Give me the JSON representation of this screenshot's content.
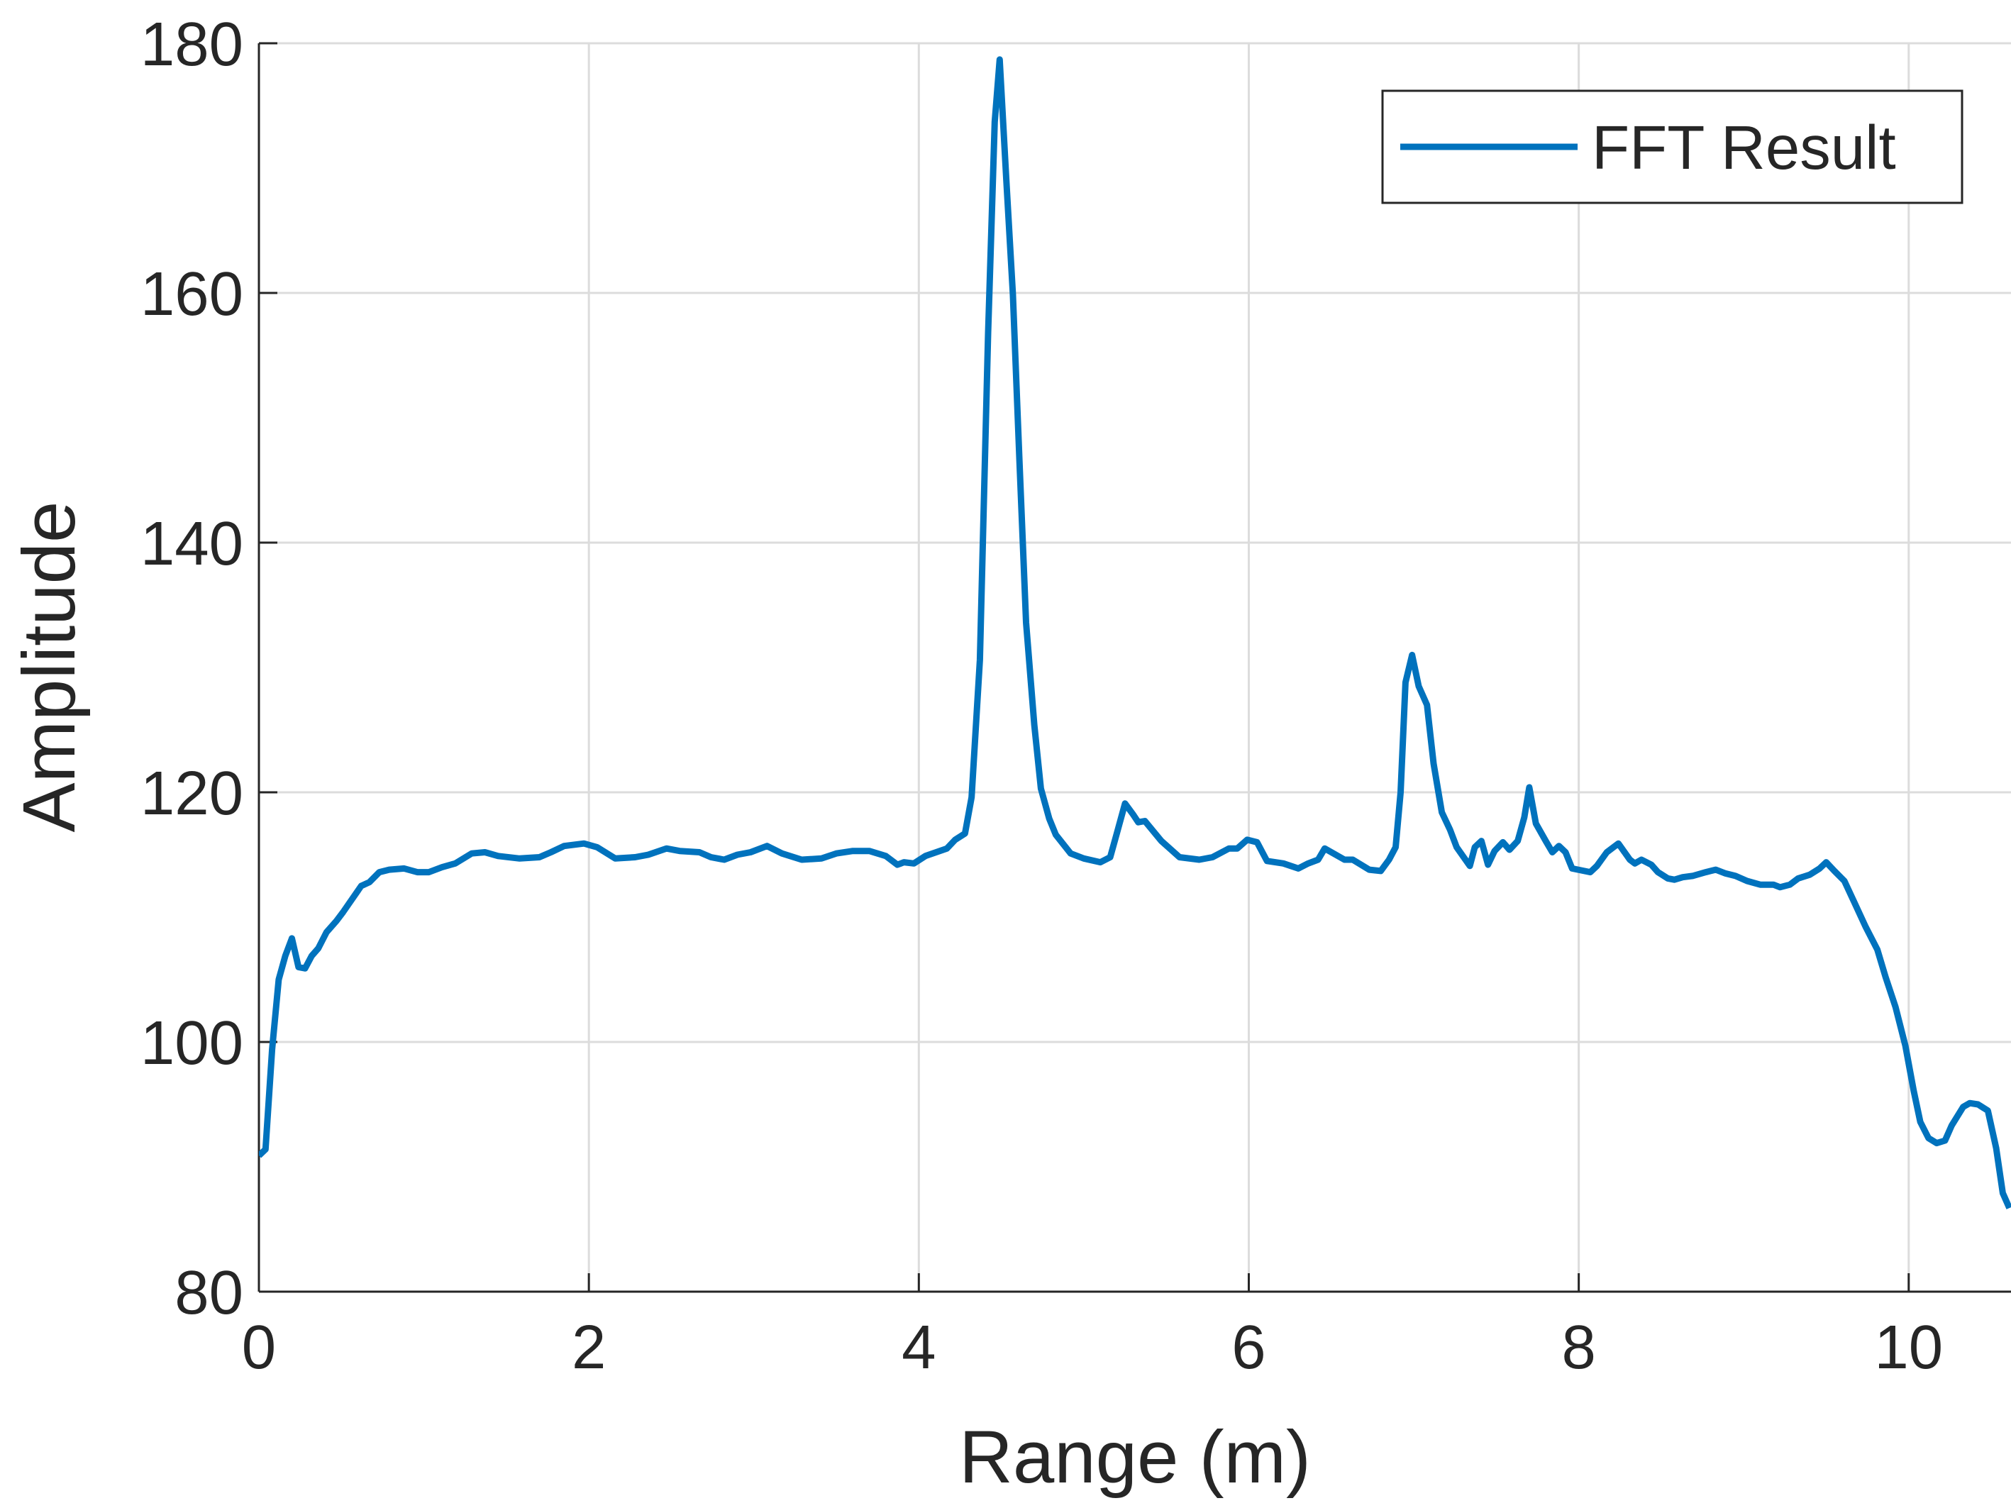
{
  "chart_data": {
    "type": "line",
    "xlabel": "Range (m)",
    "ylabel": "Amplitude",
    "xlim": [
      0,
      10.62
    ],
    "ylim": [
      80,
      180
    ],
    "xticks": [
      0,
      2,
      4,
      6,
      8,
      10
    ],
    "yticks": [
      80,
      100,
      120,
      140,
      160,
      180
    ],
    "grid": true,
    "legend": "upper right",
    "x": [
      0,
      0.04,
      0.08,
      0.12,
      0.16,
      0.2,
      0.24,
      0.28,
      0.32,
      0.36,
      0.41,
      0.47,
      0.51,
      0.62,
      0.67,
      0.73,
      0.79,
      0.88,
      0.96,
      1.03,
      1.11,
      1.19,
      1.29,
      1.37,
      1.45,
      1.58,
      1.7,
      1.77,
      1.85,
      1.97,
      2.05,
      2.16,
      2.28,
      2.36,
      2.47,
      2.55,
      2.67,
      2.74,
      2.82,
      2.9,
      2.98,
      3.08,
      3.17,
      3.29,
      3.41,
      3.5,
      3.6,
      3.7,
      3.8,
      3.87,
      3.91,
      3.97,
      4.04,
      4.17,
      4.22,
      4.28,
      4.32,
      4.37,
      4.42,
      4.46,
      4.49,
      4.53,
      4.57,
      4.61,
      4.65,
      4.7,
      4.74,
      4.79,
      4.83,
      4.92,
      5.0,
      5.1,
      5.16,
      5.2,
      5.25,
      5.3,
      5.33,
      5.37,
      5.47,
      5.58,
      5.7,
      5.78,
      5.88,
      5.93,
      5.99,
      6.05,
      6.11,
      6.21,
      6.3,
      6.36,
      6.42,
      6.46,
      6.58,
      6.63,
      6.73,
      6.8,
      6.85,
      6.89,
      6.92,
      6.95,
      6.99,
      7.03,
      7.08,
      7.12,
      7.17,
      7.22,
      7.26,
      7.34,
      7.37,
      7.41,
      7.45,
      7.49,
      7.54,
      7.58,
      7.63,
      7.67,
      7.7,
      7.74,
      7.8,
      7.84,
      7.88,
      7.92,
      7.96,
      8.07,
      8.11,
      8.17,
      8.24,
      8.31,
      8.34,
      8.38,
      8.44,
      8.48,
      8.54,
      8.58,
      8.63,
      8.69,
      8.77,
      8.83,
      8.89,
      8.95,
      9.02,
      9.1,
      9.18,
      9.22,
      9.28,
      9.33,
      9.4,
      9.46,
      9.5,
      9.55,
      9.61,
      9.67,
      9.74,
      9.81,
      9.86,
      9.92,
      9.98,
      10.03,
      10.07,
      10.12,
      10.17,
      10.22,
      10.26,
      10.33,
      10.37,
      10.42,
      10.48,
      10.53,
      10.57,
      10.61
    ],
    "series": [
      {
        "name": "FFT Result",
        "color": "#0072bd",
        "values": [
          90.9,
          91.4,
          99.4,
          105.0,
          106.9,
          108.3,
          106.0,
          105.9,
          106.9,
          107.5,
          108.8,
          109.7,
          110.4,
          112.5,
          112.8,
          113.6,
          113.8,
          113.9,
          113.6,
          113.6,
          114.0,
          114.3,
          115.1,
          115.2,
          114.9,
          114.7,
          114.8,
          115.2,
          115.7,
          115.9,
          115.6,
          114.7,
          114.8,
          115.0,
          115.5,
          115.3,
          115.2,
          114.8,
          114.6,
          115.0,
          115.2,
          115.7,
          115.1,
          114.6,
          114.7,
          115.1,
          115.3,
          115.3,
          114.9,
          114.2,
          114.4,
          114.3,
          114.9,
          115.5,
          116.2,
          116.7,
          119.6,
          130.6,
          156.8,
          173.7,
          178.7,
          169.1,
          159.9,
          146.5,
          133.6,
          125.4,
          120.3,
          117.9,
          116.6,
          115.1,
          114.7,
          114.4,
          114.8,
          116.7,
          119.1,
          118.2,
          117.6,
          117.7,
          116.1,
          114.8,
          114.6,
          114.8,
          115.5,
          115.5,
          116.2,
          116.0,
          114.5,
          114.3,
          113.9,
          114.3,
          114.6,
          115.5,
          114.6,
          114.6,
          113.8,
          113.7,
          114.6,
          115.6,
          120.0,
          128.8,
          131.0,
          128.5,
          127.0,
          122.3,
          118.4,
          117.0,
          115.6,
          114.1,
          115.6,
          116.1,
          114.2,
          115.3,
          116.0,
          115.4,
          116.1,
          118.0,
          120.4,
          117.5,
          116.1,
          115.2,
          115.7,
          115.2,
          113.9,
          113.6,
          114.1,
          115.2,
          115.9,
          114.6,
          114.3,
          114.6,
          114.2,
          113.6,
          113.1,
          113.0,
          113.2,
          113.3,
          113.6,
          113.8,
          113.5,
          113.3,
          112.9,
          112.6,
          112.6,
          112.4,
          112.6,
          113.1,
          113.4,
          113.9,
          114.4,
          113.7,
          112.9,
          111.2,
          109.2,
          107.4,
          105.2,
          102.8,
          99.7,
          96.1,
          93.6,
          92.3,
          91.9,
          92.1,
          93.3,
          94.8,
          95.1,
          95.0,
          94.5,
          91.5,
          87.9,
          86.7
        ]
      }
    ]
  }
}
